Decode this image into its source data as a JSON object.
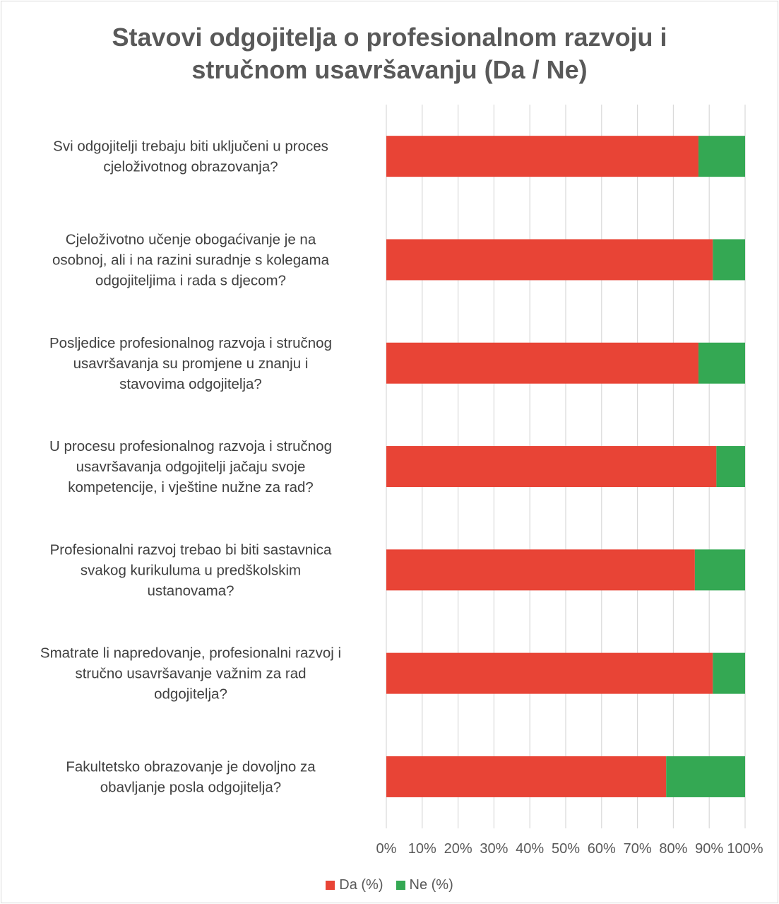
{
  "chart_data": {
    "type": "bar",
    "orientation": "horizontal",
    "stacked": "percent",
    "title_lines": [
      "Stavovi odgojitelja o profesionalnom razvoju i",
      "stručnom usavršavanju (Da / Ne)"
    ],
    "categories": [
      [
        "Svi odgojitelji trebaju biti uključeni u proces",
        "cjeloživotnog obrazovanja?"
      ],
      [
        "Cjeloživotno učenje obogaćivanje je na",
        "osobnoj, ali i na razini suradnje s kolegama",
        "odgojiteljima i rada s djecom?"
      ],
      [
        "Posljedice profesionalnog razvoja i stručnog",
        "usavršavanja su promjene u znanju i",
        "stavovima odgojitelja?"
      ],
      [
        "U procesu profesionalnog razvoja i stručnog",
        "usavršavanja odgojitelji jačaju svoje",
        "kompetencije, i vještine nužne za rad?"
      ],
      [
        "Profesionalni razvoj trebao bi biti sastavnica",
        "svakog kurikuluma u predškolskim",
        "ustanovama?"
      ],
      [
        "Smatrate li napredovanje, profesionalni razvoj i",
        "stručno usavršavanje važnim za rad",
        "odgojitelja?"
      ],
      [
        "Fakultetsko obrazovanje je dovoljno za",
        "obavljanje posla odgojitelja?"
      ]
    ],
    "series": [
      {
        "name": "Da (%)",
        "color": "#e84436",
        "values": [
          87,
          91,
          87,
          92,
          86,
          91,
          78
        ]
      },
      {
        "name": "Ne (%)",
        "color": "#34a853",
        "values": [
          13,
          9,
          13,
          8,
          14,
          9,
          22
        ]
      }
    ],
    "xlim": [
      0,
      100
    ],
    "x_ticks": [
      "0%",
      "10%",
      "20%",
      "30%",
      "40%",
      "50%",
      "60%",
      "70%",
      "80%",
      "90%",
      "100%"
    ],
    "grid": true,
    "legend_position": "bottom"
  }
}
